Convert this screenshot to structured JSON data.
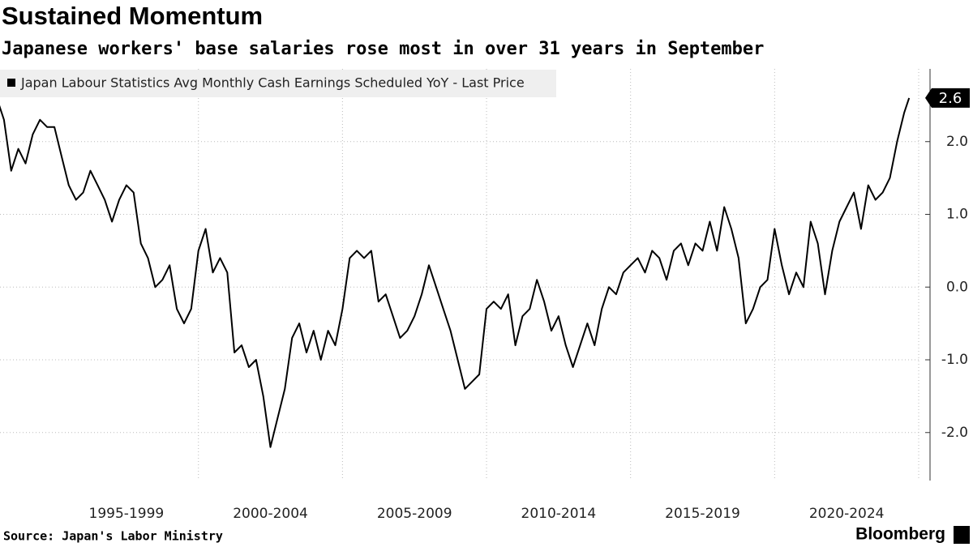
{
  "chart_data": {
    "type": "line",
    "title": "Sustained Momentum",
    "subtitle": "Japanese workers' base salaries rose most in over 31 years in September",
    "source": "Source: Japan's Labor Ministry",
    "brand": "Bloomberg",
    "x": [
      "1993-01",
      "1993-04",
      "1993-07",
      "1993-10",
      "1994-01",
      "1994-04",
      "1994-07",
      "1994-10",
      "1995-01",
      "1995-04",
      "1995-07",
      "1995-10",
      "1996-01",
      "1996-04",
      "1996-07",
      "1996-10",
      "1997-01",
      "1997-04",
      "1997-07",
      "1997-10",
      "1998-01",
      "1998-04",
      "1998-07",
      "1998-10",
      "1999-01",
      "1999-04",
      "1999-07",
      "1999-10",
      "2000-01",
      "2000-04",
      "2000-07",
      "2000-10",
      "2001-01",
      "2001-04",
      "2001-07",
      "2001-10",
      "2002-01",
      "2002-04",
      "2002-07",
      "2002-10",
      "2003-01",
      "2003-04",
      "2003-07",
      "2003-10",
      "2004-01",
      "2004-04",
      "2004-07",
      "2004-10",
      "2005-01",
      "2005-04",
      "2005-07",
      "2005-10",
      "2006-01",
      "2006-04",
      "2006-07",
      "2006-10",
      "2007-01",
      "2007-04",
      "2007-07",
      "2007-10",
      "2008-01",
      "2008-04",
      "2008-07",
      "2008-10",
      "2009-01",
      "2009-04",
      "2009-07",
      "2009-10",
      "2010-01",
      "2010-04",
      "2010-07",
      "2010-10",
      "2011-01",
      "2011-04",
      "2011-07",
      "2011-10",
      "2012-01",
      "2012-04",
      "2012-07",
      "2012-10",
      "2013-01",
      "2013-04",
      "2013-07",
      "2013-10",
      "2014-01",
      "2014-04",
      "2014-07",
      "2014-10",
      "2015-01",
      "2015-04",
      "2015-07",
      "2015-10",
      "2016-01",
      "2016-04",
      "2016-07",
      "2016-10",
      "2017-01",
      "2017-04",
      "2017-07",
      "2017-10",
      "2018-01",
      "2018-04",
      "2018-07",
      "2018-10",
      "2019-01",
      "2019-04",
      "2019-07",
      "2019-10",
      "2020-01",
      "2020-04",
      "2020-07",
      "2020-10",
      "2021-01",
      "2021-04",
      "2021-07",
      "2021-10",
      "2022-01",
      "2022-04",
      "2022-07",
      "2022-10",
      "2023-01",
      "2023-04",
      "2023-07",
      "2023-10",
      "2024-01",
      "2024-04",
      "2024-07",
      "2024-09"
    ],
    "series": [
      {
        "name": "Japan Labour Statistics Avg Monthly Cash Earnings Scheduled YoY - Last Price",
        "color": "#000000",
        "values": [
          2.6,
          2.3,
          1.6,
          1.9,
          1.7,
          2.1,
          2.3,
          2.2,
          2.2,
          1.8,
          1.4,
          1.2,
          1.3,
          1.6,
          1.4,
          1.2,
          0.9,
          1.2,
          1.4,
          1.3,
          0.6,
          0.4,
          0.0,
          0.1,
          0.3,
          -0.3,
          -0.5,
          -0.3,
          0.5,
          0.8,
          0.2,
          0.4,
          0.2,
          -0.9,
          -0.8,
          -1.1,
          -1.0,
          -1.5,
          -2.2,
          -1.8,
          -1.4,
          -0.7,
          -0.5,
          -0.9,
          -0.6,
          -1.0,
          -0.6,
          -0.8,
          -0.3,
          0.4,
          0.5,
          0.4,
          0.5,
          -0.2,
          -0.1,
          -0.4,
          -0.7,
          -0.6,
          -0.4,
          -0.1,
          0.3,
          0.0,
          -0.3,
          -0.6,
          -1.0,
          -1.4,
          -1.3,
          -1.2,
          -0.3,
          -0.2,
          -0.3,
          -0.1,
          -0.8,
          -0.4,
          -0.3,
          0.1,
          -0.2,
          -0.6,
          -0.4,
          -0.8,
          -1.1,
          -0.8,
          -0.5,
          -0.8,
          -0.3,
          0.0,
          -0.1,
          0.2,
          0.3,
          0.4,
          0.2,
          0.5,
          0.4,
          0.1,
          0.5,
          0.6,
          0.3,
          0.6,
          0.5,
          0.9,
          0.5,
          1.1,
          0.8,
          0.4,
          -0.5,
          -0.3,
          0.0,
          0.1,
          0.8,
          0.3,
          -0.1,
          0.2,
          0.0,
          0.9,
          0.6,
          -0.1,
          0.5,
          0.9,
          1.1,
          1.3,
          0.8,
          1.4,
          1.2,
          1.3,
          1.5,
          2.0,
          2.4,
          2.6
        ]
      }
    ],
    "xlim": [
      "1993-01",
      "2025-01"
    ],
    "xticks": [
      {
        "value": "1995-01",
        "label": "1995-1999"
      },
      {
        "value": "2000-01",
        "label": "2000-2004"
      },
      {
        "value": "2005-01",
        "label": "2005-2009"
      },
      {
        "value": "2010-01",
        "label": "2010-2014"
      },
      {
        "value": "2015-01",
        "label": "2015-2019"
      },
      {
        "value": "2020-01",
        "label": "2020-2024"
      }
    ],
    "ylim": [
      -2.66,
      3.0
    ],
    "yticks": [
      {
        "value": -2,
        "label": "-2.0"
      },
      {
        "value": -1,
        "label": "-1.0"
      },
      {
        "value": 0,
        "label": "0.0"
      },
      {
        "value": 1,
        "label": "1.0"
      },
      {
        "value": 2,
        "label": "2.0"
      }
    ],
    "grid": true
  }
}
